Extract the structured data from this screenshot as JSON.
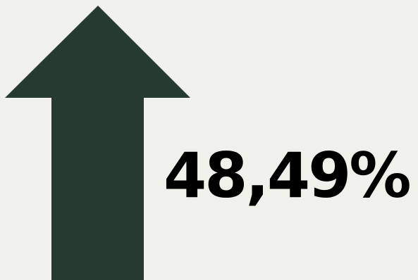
{
  "indicator": {
    "value_text": "48,49%",
    "direction": "up",
    "icon": "arrow-up-icon",
    "arrow_color": "#263a30",
    "text_color": "#000000",
    "background_color": "#f1f1ec"
  }
}
